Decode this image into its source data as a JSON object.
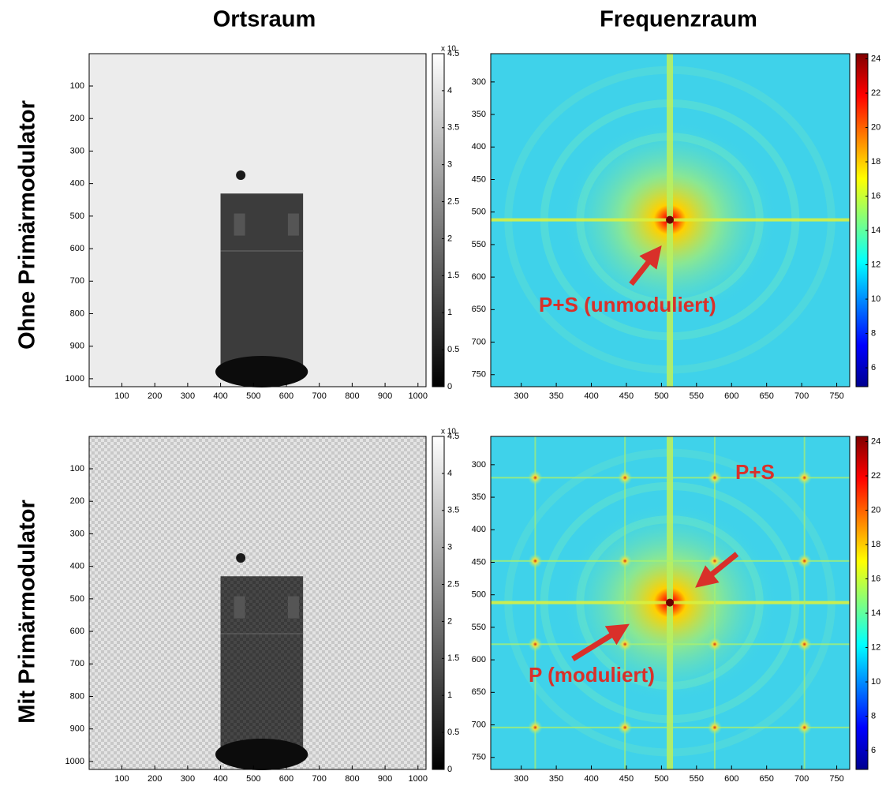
{
  "column_titles": [
    "Ortsraum",
    "Frequenzraum"
  ],
  "row_titles": [
    "Ohne Primärmodulator",
    "Mit Primärmodulator"
  ],
  "chart_data": [
    {
      "type": "image",
      "colormap": "gray",
      "xlim": [
        0.5,
        1024.5
      ],
      "xticks": [
        100,
        200,
        300,
        400,
        500,
        600,
        700,
        800,
        900,
        1000
      ],
      "ylim": [
        1024.5,
        0.5
      ],
      "yticks": [
        100,
        200,
        300,
        400,
        500,
        600,
        700,
        800,
        900,
        1000
      ],
      "clim": [
        0,
        4.5
      ],
      "cticks": [
        0,
        0.5,
        1,
        1.5,
        2,
        2.5,
        3,
        3.5,
        4,
        4.5
      ],
      "cmultiplier": "x 10",
      "annotations": []
    },
    {
      "type": "image",
      "colormap": "jet",
      "xlim": [
        256.5,
        768.5
      ],
      "xticks": [
        300,
        350,
        400,
        450,
        500,
        550,
        600,
        650,
        700,
        750
      ],
      "ylim": [
        768.5,
        256.5
      ],
      "yticks": [
        300,
        350,
        400,
        450,
        500,
        550,
        600,
        650,
        700,
        750
      ],
      "clim": [
        4.9,
        24.3
      ],
      "cticks": [
        6,
        8,
        10,
        12,
        14,
        16,
        18,
        20,
        22,
        24
      ],
      "annotations": [
        "P+S (unmoduliert)"
      ]
    },
    {
      "type": "image",
      "colormap": "gray",
      "xlim": [
        0.5,
        1024.5
      ],
      "xticks": [
        100,
        200,
        300,
        400,
        500,
        600,
        700,
        800,
        900,
        1000
      ],
      "ylim": [
        1024.5,
        0.5
      ],
      "yticks": [
        100,
        200,
        300,
        400,
        500,
        600,
        700,
        800,
        900,
        1000
      ],
      "clim": [
        0,
        4.5
      ],
      "cticks": [
        0,
        0.5,
        1,
        1.5,
        2,
        2.5,
        3,
        3.5,
        4,
        4.5
      ],
      "cmultiplier": "x 10",
      "annotations": []
    },
    {
      "type": "image",
      "colormap": "jet",
      "xlim": [
        256.5,
        768.5
      ],
      "xticks": [
        300,
        350,
        400,
        450,
        500,
        550,
        600,
        650,
        700,
        750
      ],
      "ylim": [
        768.5,
        256.5
      ],
      "yticks": [
        300,
        350,
        400,
        450,
        500,
        550,
        600,
        650,
        700,
        750
      ],
      "clim": [
        4.9,
        24.3
      ],
      "cticks": [
        6,
        8,
        10,
        12,
        14,
        16,
        18,
        20,
        22,
        24
      ],
      "annotations": [
        "P+S",
        "P (moduliert)"
      ]
    }
  ]
}
